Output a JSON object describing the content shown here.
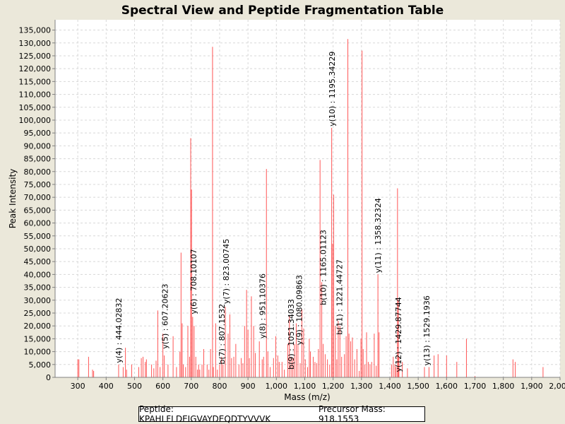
{
  "chart_data": {
    "type": "bar",
    "title": "Spectral View and Peptide Fragmentation Table",
    "xlabel": "Mass (m/z)",
    "ylabel": "Peak Intensity",
    "xlim": [
      220,
      2000
    ],
    "ylim": [
      0,
      139000
    ],
    "x_ticks": [
      300,
      400,
      500,
      600,
      700,
      800,
      900,
      1000,
      1100,
      1200,
      1300,
      1400,
      1500,
      1600,
      1700,
      1800,
      1900,
      2000
    ],
    "x_tick_labels": [
      "300",
      "400",
      "500",
      "600",
      "700",
      "800",
      "900",
      "1,000",
      "1,100",
      "1,200",
      "1,300",
      "1,400",
      "1,500",
      "1,600",
      "1,700",
      "1,800",
      "1,900",
      "2,000"
    ],
    "y_ticks": [
      0,
      5000,
      10000,
      15000,
      20000,
      25000,
      30000,
      35000,
      40000,
      45000,
      50000,
      55000,
      60000,
      65000,
      70000,
      75000,
      80000,
      85000,
      90000,
      95000,
      100000,
      105000,
      110000,
      115000,
      120000,
      125000,
      130000,
      135000
    ],
    "y_tick_labels": [
      "0",
      "5,000",
      "10,000",
      "15,000",
      "20,000",
      "25,000",
      "30,000",
      "35,000",
      "40,000",
      "45,000",
      "50,000",
      "55,000",
      "60,000",
      "65,000",
      "70,000",
      "75,000",
      "80,000",
      "85,000",
      "90,000",
      "95,000",
      "100,000",
      "105,000",
      "110,000",
      "115,000",
      "120,000",
      "125,000",
      "130,000",
      "135,000"
    ],
    "grid": true,
    "color": "#ff5555",
    "peaks": [
      [
        300,
        7000
      ],
      [
        304,
        7000
      ],
      [
        338,
        8000
      ],
      [
        352,
        3000
      ],
      [
        356,
        2500
      ],
      [
        444,
        5000
      ],
      [
        460,
        4000
      ],
      [
        468,
        11500
      ],
      [
        472,
        3000
      ],
      [
        490,
        5000
      ],
      [
        515,
        4000
      ],
      [
        524,
        7500
      ],
      [
        530,
        8000
      ],
      [
        538,
        6000
      ],
      [
        542,
        7000
      ],
      [
        560,
        5000
      ],
      [
        568,
        3500
      ],
      [
        576,
        6500
      ],
      [
        582,
        26000
      ],
      [
        590,
        4000
      ],
      [
        600,
        17000
      ],
      [
        605,
        8500
      ],
      [
        618,
        5000
      ],
      [
        636,
        16000
      ],
      [
        648,
        4000
      ],
      [
        660,
        10000
      ],
      [
        664,
        48500
      ],
      [
        668,
        21000
      ],
      [
        672,
        5000
      ],
      [
        680,
        4000
      ],
      [
        688,
        20000
      ],
      [
        694,
        8000
      ],
      [
        698,
        93000
      ],
      [
        701,
        73000
      ],
      [
        705,
        23500
      ],
      [
        710,
        20000
      ],
      [
        716,
        8000
      ],
      [
        722,
        3000
      ],
      [
        726,
        5000
      ],
      [
        730,
        3000
      ],
      [
        738,
        5000
      ],
      [
        744,
        11000
      ],
      [
        756,
        5000
      ],
      [
        762,
        3000
      ],
      [
        768,
        11000
      ],
      [
        775,
        128500
      ],
      [
        778,
        4000
      ],
      [
        786,
        21000
      ],
      [
        792,
        3000
      ],
      [
        800,
        5000
      ],
      [
        807,
        8000
      ],
      [
        812,
        5000
      ],
      [
        820,
        27500
      ],
      [
        830,
        17000
      ],
      [
        836,
        24500
      ],
      [
        842,
        7500
      ],
      [
        850,
        8000
      ],
      [
        857,
        13000
      ],
      [
        868,
        5000
      ],
      [
        876,
        7500
      ],
      [
        882,
        5500
      ],
      [
        888,
        20000
      ],
      [
        895,
        34000
      ],
      [
        900,
        18500
      ],
      [
        905,
        7500
      ],
      [
        912,
        31500
      ],
      [
        920,
        20000
      ],
      [
        926,
        9500
      ],
      [
        940,
        14000
      ],
      [
        950,
        7000
      ],
      [
        955,
        8000
      ],
      [
        965,
        81000
      ],
      [
        970,
        10000
      ],
      [
        978,
        4000
      ],
      [
        990,
        7500
      ],
      [
        998,
        16000
      ],
      [
        1005,
        8500
      ],
      [
        1010,
        6000
      ],
      [
        1020,
        6000
      ],
      [
        1028,
        3000
      ],
      [
        1040,
        13000
      ],
      [
        1046,
        24000
      ],
      [
        1052,
        8000
      ],
      [
        1058,
        7500
      ],
      [
        1064,
        13000
      ],
      [
        1070,
        21000
      ],
      [
        1076,
        13000
      ],
      [
        1084,
        5500
      ],
      [
        1090,
        26500
      ],
      [
        1096,
        19000
      ],
      [
        1102,
        7000
      ],
      [
        1110,
        4000
      ],
      [
        1116,
        15000
      ],
      [
        1120,
        10000
      ],
      [
        1130,
        8000
      ],
      [
        1136,
        6000
      ],
      [
        1142,
        5500
      ],
      [
        1148,
        11000
      ],
      [
        1154,
        84500
      ],
      [
        1160,
        37000
      ],
      [
        1165,
        13000
      ],
      [
        1172,
        9000
      ],
      [
        1180,
        7000
      ],
      [
        1188,
        5000
      ],
      [
        1195,
        97000
      ],
      [
        1198,
        52000
      ],
      [
        1202,
        71000
      ],
      [
        1208,
        20000
      ],
      [
        1213,
        7000
      ],
      [
        1218,
        22000
      ],
      [
        1224,
        20000
      ],
      [
        1230,
        8000
      ],
      [
        1240,
        9000
      ],
      [
        1246,
        16000
      ],
      [
        1252,
        131500
      ],
      [
        1256,
        17000
      ],
      [
        1262,
        14000
      ],
      [
        1268,
        15500
      ],
      [
        1276,
        7000
      ],
      [
        1284,
        11000
      ],
      [
        1292,
        2500
      ],
      [
        1298,
        15000
      ],
      [
        1302,
        127000
      ],
      [
        1306,
        11000
      ],
      [
        1312,
        5000
      ],
      [
        1318,
        17500
      ],
      [
        1324,
        6000
      ],
      [
        1330,
        5000
      ],
      [
        1336,
        6000
      ],
      [
        1345,
        17000
      ],
      [
        1352,
        4500
      ],
      [
        1358,
        40000
      ],
      [
        1362,
        17500
      ],
      [
        1406,
        5000
      ],
      [
        1412,
        8000
      ],
      [
        1418,
        5000
      ],
      [
        1422,
        4000
      ],
      [
        1427,
        73500
      ],
      [
        1430,
        30000
      ],
      [
        1432,
        8000
      ],
      [
        1444,
        6000
      ],
      [
        1462,
        3500
      ],
      [
        1522,
        4000
      ],
      [
        1538,
        4000
      ],
      [
        1556,
        8500
      ],
      [
        1570,
        9000
      ],
      [
        1600,
        8500
      ],
      [
        1636,
        6000
      ],
      [
        1670,
        15000
      ],
      [
        1700,
        500
      ],
      [
        1834,
        7000
      ],
      [
        1842,
        6000
      ],
      [
        1940,
        4000
      ]
    ],
    "annotations": [
      {
        "x": 444.02832,
        "y": 5000,
        "text": "y(4) : 444.02832"
      },
      {
        "x": 607.20623,
        "y": 10500,
        "text": "y(5) : 607.20623"
      },
      {
        "x": 708.10107,
        "y": 24000,
        "text": "y(6) : 708.10107"
      },
      {
        "x": 807.1532,
        "y": 4500,
        "text": "b(7) : 807.1532"
      },
      {
        "x": 823.00745,
        "y": 28000,
        "text": "y(7) : 823.00745"
      },
      {
        "x": 951.10376,
        "y": 14500,
        "text": "y(8) : 951.10376"
      },
      {
        "x": 1051.34033,
        "y": 2500,
        "text": "b(9) : 1051.34033"
      },
      {
        "x": 1080.09863,
        "y": 12000,
        "text": "y(9) : 1080.09863"
      },
      {
        "x": 1165.01123,
        "y": 27500,
        "text": "b(10) : 1165.01123"
      },
      {
        "x": 1195.34229,
        "y": 97000,
        "text": "y(10) : 1195.34229"
      },
      {
        "x": 1221.44727,
        "y": 16000,
        "text": "b(11) : 1221.44727"
      },
      {
        "x": 1358.32324,
        "y": 40000,
        "text": "y(11) : 1358.32324"
      },
      {
        "x": 1429.87744,
        "y": 1500,
        "text": "y(12) : 1429.87744"
      },
      {
        "x": 1529.1936,
        "y": 4000,
        "text": "y(13) : 1529.1936"
      }
    ]
  },
  "footer": {
    "peptide": "Peptide: KPAHLFLDEIGVAYDEQDTYVVVK",
    "precursor": "Precursor Mass: 918.1553"
  }
}
